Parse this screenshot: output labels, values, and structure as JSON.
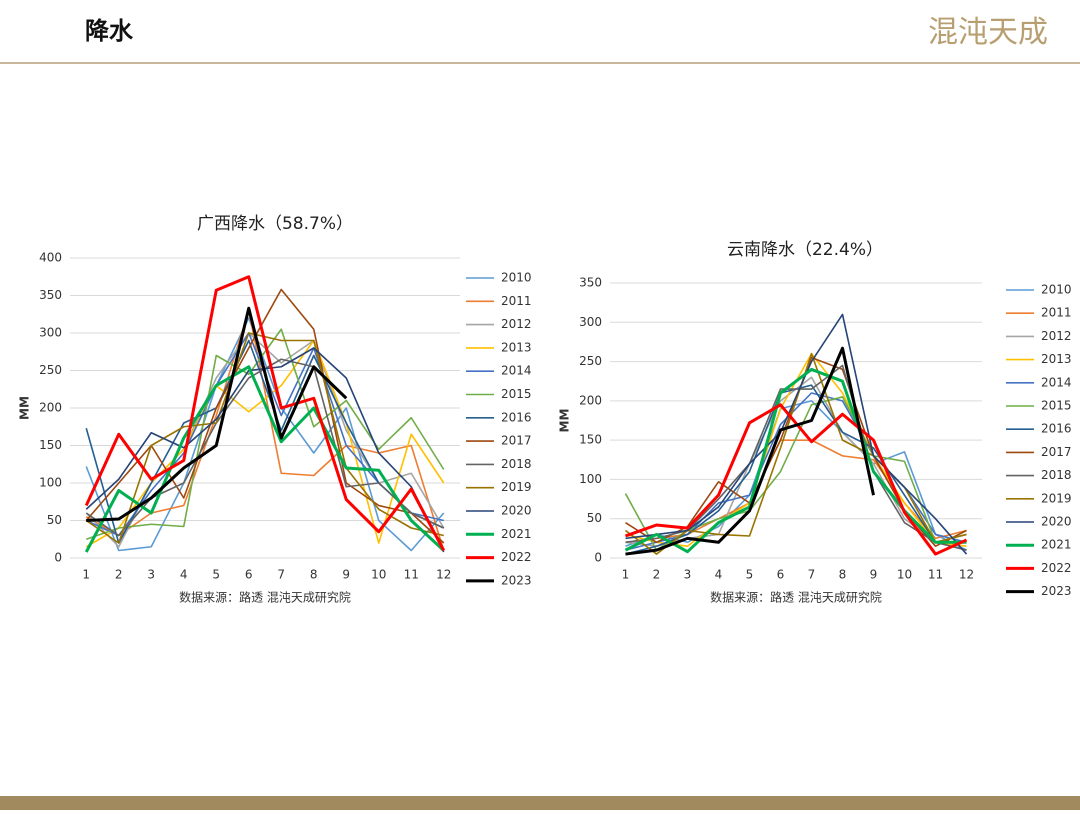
{
  "header": {
    "title": "降水",
    "logo": "混沌天成"
  },
  "chart_data": [
    {
      "type": "line",
      "title": "广西降水（58.7%）",
      "y_label": "MM",
      "source": "数据来源：路透 混沌天成研究院",
      "categories": [
        1,
        2,
        3,
        4,
        5,
        6,
        7,
        8,
        9,
        10,
        11,
        12
      ],
      "ylim": [
        0,
        400
      ],
      "yticks": [
        0,
        50,
        100,
        150,
        200,
        250,
        300,
        350,
        400
      ],
      "grid": true,
      "legend": "right",
      "series": [
        {
          "name": "2010",
          "color": "#5b9bd5",
          "values": [
            122,
            10,
            15,
            100,
            230,
            320,
            200,
            140,
            200,
            50,
            10,
            60
          ]
        },
        {
          "name": "2011",
          "color": "#ed7d31",
          "values": [
            55,
            30,
            60,
            70,
            190,
            330,
            113,
            110,
            150,
            140,
            150,
            10
          ]
        },
        {
          "name": "2012",
          "color": "#a5a5a5",
          "values": [
            60,
            15,
            100,
            145,
            240,
            300,
            260,
            290,
            170,
            100,
            113,
            40
          ]
        },
        {
          "name": "2013",
          "color": "#ffc000",
          "values": [
            15,
            40,
            100,
            145,
            230,
            195,
            230,
            290,
            180,
            20,
            165,
            100
          ]
        },
        {
          "name": "2014",
          "color": "#4472c4",
          "values": [
            50,
            30,
            90,
            140,
            230,
            300,
            190,
            280,
            150,
            100,
            60,
            50
          ]
        },
        {
          "name": "2015",
          "color": "#70ad47",
          "values": [
            25,
            40,
            45,
            42,
            270,
            245,
            305,
            175,
            210,
            145,
            187,
            118
          ]
        },
        {
          "name": "2016",
          "color": "#255e91",
          "values": [
            173,
            20,
            100,
            180,
            200,
            290,
            170,
            270,
            180,
            100,
            60,
            40
          ]
        },
        {
          "name": "2017",
          "color": "#9e480e",
          "values": [
            50,
            100,
            150,
            80,
            200,
            280,
            358,
            305,
            100,
            70,
            60,
            20
          ]
        },
        {
          "name": "2018",
          "color": "#636363",
          "values": [
            60,
            30,
            80,
            100,
            180,
            240,
            265,
            255,
            95,
            100,
            60,
            40
          ]
        },
        {
          "name": "2019",
          "color": "#997300",
          "values": [
            50,
            20,
            150,
            175,
            180,
            300,
            290,
            290,
            120,
            65,
            40,
            30
          ]
        },
        {
          "name": "2020",
          "color": "#264478",
          "values": [
            65,
            105,
            167,
            147,
            185,
            250,
            255,
            280,
            240,
            140,
            95,
            8
          ]
        },
        {
          "name": "2021",
          "color": "#00b050",
          "values": [
            8,
            90,
            60,
            160,
            230,
            255,
            155,
            200,
            120,
            117,
            50,
            10
          ]
        },
        {
          "name": "2022",
          "color": "#ff0000",
          "values": [
            70,
            165,
            105,
            130,
            357,
            375,
            200,
            213,
            78,
            35,
            92,
            10
          ]
        },
        {
          "name": "2023",
          "color": "#000000",
          "values": [
            50,
            52,
            80,
            120,
            150,
            333,
            160,
            255,
            213,
            null,
            null,
            null
          ]
        }
      ]
    },
    {
      "type": "line",
      "title": "云南降水（22.4%）",
      "y_label": "MM",
      "source": "数据来源：路透 混沌天成研究院",
      "categories": [
        1,
        2,
        3,
        4,
        5,
        6,
        7,
        8,
        9,
        10,
        11,
        12
      ],
      "ylim": [
        0,
        350
      ],
      "yticks": [
        0,
        50,
        100,
        150,
        200,
        250,
        300,
        350
      ],
      "grid": true,
      "legend": "right",
      "series": [
        {
          "name": "2010",
          "color": "#5b9bd5",
          "values": [
            15,
            30,
            20,
            40,
            80,
            190,
            200,
            160,
            120,
            135,
            30,
            10
          ]
        },
        {
          "name": "2011",
          "color": "#ed7d31",
          "values": [
            20,
            25,
            30,
            50,
            70,
            150,
            150,
            130,
            125,
            70,
            25,
            35
          ]
        },
        {
          "name": "2012",
          "color": "#a5a5a5",
          "values": [
            20,
            15,
            25,
            30,
            120,
            200,
            230,
            160,
            120,
            50,
            20,
            10
          ]
        },
        {
          "name": "2013",
          "color": "#ffc000",
          "values": [
            30,
            20,
            15,
            45,
            70,
            190,
            260,
            210,
            130,
            70,
            20,
            15
          ]
        },
        {
          "name": "2014",
          "color": "#4472c4",
          "values": [
            10,
            20,
            30,
            70,
            80,
            170,
            210,
            200,
            130,
            90,
            30,
            20
          ]
        },
        {
          "name": "2015",
          "color": "#70ad47",
          "values": [
            82,
            10,
            35,
            50,
            60,
            110,
            195,
            205,
            130,
            123,
            20,
            30
          ]
        },
        {
          "name": "2016",
          "color": "#255e91",
          "values": [
            5,
            15,
            30,
            60,
            110,
            210,
            220,
            160,
            140,
            80,
            20,
            10
          ]
        },
        {
          "name": "2017",
          "color": "#9e480e",
          "values": [
            45,
            20,
            40,
            97,
            70,
            150,
            255,
            240,
            130,
            60,
            15,
            35
          ]
        },
        {
          "name": "2018",
          "color": "#636363",
          "values": [
            20,
            25,
            35,
            75,
            120,
            215,
            215,
            245,
            110,
            45,
            20,
            10
          ]
        },
        {
          "name": "2019",
          "color": "#997300",
          "values": [
            35,
            5,
            35,
            30,
            28,
            140,
            260,
            150,
            130,
            90,
            20,
            30
          ]
        },
        {
          "name": "2020",
          "color": "#264478",
          "values": [
            25,
            30,
            35,
            65,
            120,
            160,
            250,
            310,
            130,
            90,
            50,
            5
          ]
        },
        {
          "name": "2021",
          "color": "#00b050",
          "values": [
            10,
            30,
            8,
            45,
            65,
            210,
            240,
            225,
            110,
            60,
            20,
            20
          ]
        },
        {
          "name": "2022",
          "color": "#ff0000",
          "values": [
            28,
            42,
            38,
            80,
            172,
            195,
            148,
            183,
            150,
            58,
            5,
            23
          ]
        },
        {
          "name": "2023",
          "color": "#000000",
          "values": [
            5,
            10,
            25,
            20,
            60,
            163,
            175,
            267,
            80,
            null,
            null,
            null
          ]
        }
      ]
    }
  ]
}
